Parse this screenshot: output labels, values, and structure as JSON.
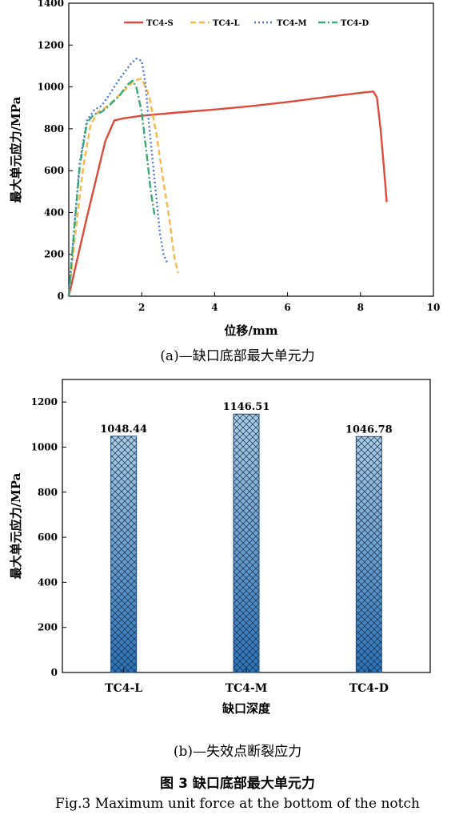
{
  "chart_data": [
    {
      "type": "line",
      "title": "",
      "xlabel": "位移/mm",
      "ylabel": "最大单元应力/MPa",
      "xlim": [
        0,
        10
      ],
      "ylim": [
        0,
        1400
      ],
      "xticks": [
        2,
        4,
        6,
        8,
        10
      ],
      "yticks": [
        0,
        200,
        400,
        600,
        800,
        1000,
        1200,
        1400
      ],
      "grid": false,
      "legend": "top",
      "series": [
        {
          "name": "TC4-S",
          "color": "#e04a3c",
          "dash": "solid",
          "x": [
            0,
            0.5,
            1.0,
            1.25,
            1.5,
            2,
            3,
            4,
            5,
            6,
            7,
            8,
            8.35,
            8.45,
            8.55,
            8.65,
            8.72
          ],
          "y": [
            0,
            380,
            740,
            840,
            850,
            862,
            878,
            892,
            908,
            928,
            950,
            972,
            978,
            950,
            800,
            600,
            450
          ]
        },
        {
          "name": "TC4-L",
          "color": "#f5b94e",
          "dash": "dashed",
          "x": [
            0,
            0.2,
            0.4,
            0.6,
            0.8,
            1.0,
            1.2,
            1.5,
            1.8,
            2.0,
            2.2,
            2.4,
            2.6,
            2.75,
            2.9,
            3.0
          ],
          "y": [
            0,
            330,
            620,
            820,
            880,
            900,
            930,
            980,
            1030,
            1040,
            960,
            780,
            540,
            380,
            180,
            110
          ]
        },
        {
          "name": "TC4-M",
          "color": "#4a78d8",
          "dash": "dotted",
          "x": [
            0,
            0.15,
            0.3,
            0.5,
            0.7,
            0.9,
            1.1,
            1.4,
            1.7,
            1.85,
            2.0,
            2.1,
            2.2,
            2.35,
            2.5,
            2.6,
            2.7
          ],
          "y": [
            0,
            330,
            640,
            840,
            890,
            910,
            960,
            1040,
            1110,
            1135,
            1125,
            1020,
            820,
            560,
            300,
            200,
            160
          ]
        },
        {
          "name": "TC4-D",
          "color": "#3aa878",
          "dash": "dashdot",
          "x": [
            0,
            0.15,
            0.3,
            0.5,
            0.7,
            0.9,
            1.1,
            1.4,
            1.6,
            1.75,
            1.85,
            2.0,
            2.15,
            2.25,
            2.35
          ],
          "y": [
            0,
            320,
            620,
            830,
            870,
            880,
            910,
            960,
            1010,
            1030,
            1000,
            880,
            660,
            500,
            390
          ]
        }
      ]
    },
    {
      "type": "bar",
      "title": "",
      "xlabel": "缺口深度",
      "ylabel": "最大单元应力/MPa",
      "ylim": [
        0,
        1300
      ],
      "yticks": [
        0,
        200,
        400,
        600,
        800,
        1000,
        1200
      ],
      "categories": [
        "TC4-L",
        "TC4-M",
        "TC4-D"
      ],
      "values": [
        1048.44,
        1146.51,
        1046.78
      ],
      "labels": [
        "1048.44",
        "1146.51",
        "1046.78"
      ],
      "bar_color_top": "#a9cde6",
      "bar_color_bottom": "#2a72b8",
      "pattern": "crosshatch"
    }
  ],
  "captions": {
    "a": "(a)—缺口底部最大单元力",
    "b": "(b)—失效点断裂应力",
    "figure_title": "图 3  缺口底部最大单元力",
    "figure_subtitle": "Fig.3    Maximum unit force at the bottom of the notch"
  }
}
